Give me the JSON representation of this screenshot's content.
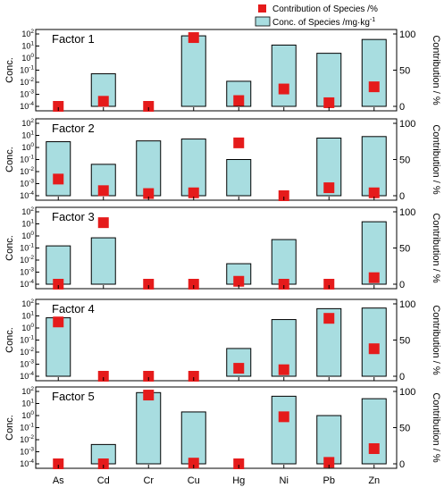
{
  "chart_data": {
    "type": "bar",
    "categories": [
      "As",
      "Cd",
      "Cr",
      "Cu",
      "Hg",
      "Ni",
      "Pb",
      "Zn"
    ],
    "legend": {
      "contribution_label": "Contribution of Species /%",
      "concentration_label": "Conc. of Species /mg·kg",
      "concentration_label_superscript": "-1",
      "position": "top-right"
    },
    "left_axis_label": "Conc.",
    "right_axis_label": "Contribution / %",
    "conc_tick_exponents": [
      -4,
      -3,
      -2,
      -1,
      0,
      1,
      2
    ],
    "conc_tick_base": "10",
    "contribution_ticks": [
      0,
      50,
      100
    ],
    "ylim_conc": [
      0.0001,
      100
    ],
    "ylim_contribution": [
      0,
      100
    ],
    "bar_color": "#a8dde0",
    "marker_color": "#e51b1b",
    "panels": [
      {
        "title": "Factor 1",
        "conc": [
          null,
          0.05,
          null,
          70,
          0.012,
          12,
          2.5,
          35
        ],
        "contribution": [
          0,
          7,
          0,
          95,
          8,
          24,
          5,
          27
        ]
      },
      {
        "title": "Factor 2",
        "conc": [
          3,
          0.04,
          3.5,
          5,
          0.1,
          null,
          6,
          8
        ],
        "contribution": [
          23,
          7,
          3,
          4,
          73,
          0,
          11,
          4
        ]
      },
      {
        "title": "Factor 3",
        "conc": [
          0.15,
          0.7,
          null,
          null,
          0.005,
          0.5,
          null,
          15
        ],
        "contribution": [
          0,
          85,
          0,
          0,
          4,
          0,
          0,
          9
        ]
      },
      {
        "title": "Factor 4",
        "conc": [
          7,
          null,
          null,
          null,
          0.02,
          5,
          40,
          45
        ],
        "contribution": [
          75,
          0,
          0,
          0,
          11,
          9,
          80,
          38
        ]
      },
      {
        "title": "Factor 5",
        "conc": [
          null,
          0.004,
          80,
          2,
          null,
          40,
          1,
          25
        ],
        "contribution": [
          0,
          0,
          95,
          1,
          0,
          65,
          2,
          21
        ]
      }
    ]
  }
}
